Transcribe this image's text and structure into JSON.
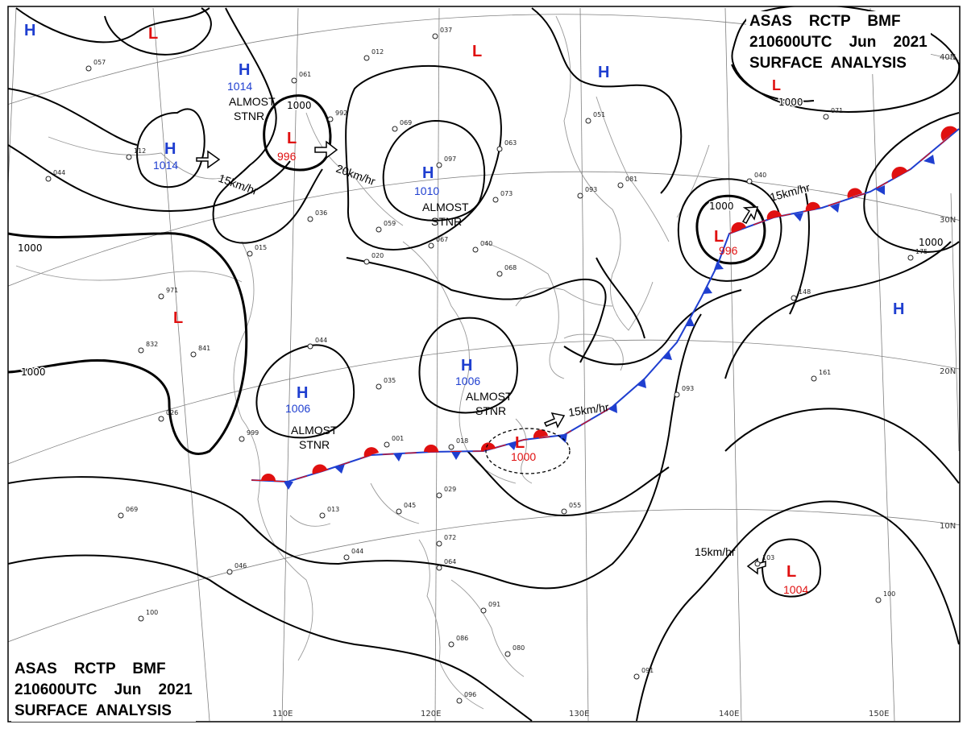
{
  "header": {
    "line1": "ASAS    RCTP    BMF",
    "line2": "210600UTC    Jun    2021",
    "line3": "SURFACE  ANALYSIS"
  },
  "colors": {
    "high": "#1f3fd0",
    "low": "#e01010",
    "isobar": "#000000",
    "grid": "#808080",
    "coast": "#9a9a9a",
    "warm_front": "#e01010",
    "cold_front": "#1f3fd0"
  },
  "lon_labels": [
    "110E",
    "120E",
    "130E",
    "140E",
    "150E"
  ],
  "lat_labels": [
    "40N",
    "30N",
    "20N",
    "10N"
  ],
  "systems": [
    {
      "kind": "H",
      "letter": "H",
      "value": ""
    },
    {
      "kind": "H",
      "letter": "H",
      "value": "1014"
    },
    {
      "kind": "H",
      "letter": "H",
      "value": "1014"
    },
    {
      "kind": "L",
      "letter": "L",
      "value": ""
    },
    {
      "kind": "L",
      "letter": "L",
      "value": "996"
    },
    {
      "kind": "L",
      "letter": "L",
      "value": ""
    },
    {
      "kind": "H",
      "letter": "H",
      "value": "1010"
    },
    {
      "kind": "H",
      "letter": "H",
      "value": ""
    },
    {
      "kind": "L",
      "letter": "L",
      "value": ""
    },
    {
      "kind": "L",
      "letter": "L",
      "value": ""
    },
    {
      "kind": "H",
      "letter": "H",
      "value": "1006"
    },
    {
      "kind": "H",
      "letter": "H",
      "value": "1006"
    },
    {
      "kind": "L",
      "letter": "L",
      "value": "996"
    },
    {
      "kind": "H",
      "letter": "H",
      "value": ""
    },
    {
      "kind": "L",
      "letter": "L",
      "value": "1000"
    },
    {
      "kind": "L",
      "letter": "L",
      "value": "1004"
    }
  ],
  "notes": [
    {
      "line1": "ALMOST",
      "line2": "STNR"
    },
    {
      "line1": "ALMOST",
      "line2": "STNR"
    },
    {
      "line1": "ALMOST",
      "line2": "STNR"
    },
    {
      "line1": "ALMOST",
      "line2": "STNR"
    }
  ],
  "motions": [
    {
      "speed": "15km/hr"
    },
    {
      "speed": "20km/hr"
    },
    {
      "speed": "15km/hr"
    },
    {
      "speed": "15km/hr"
    },
    {
      "speed": "15km/hr"
    }
  ],
  "isobar_labels": [
    "1000",
    "1000",
    "1000",
    "1000",
    "1000",
    "1000"
  ],
  "station_numbers": [
    "037",
    "012",
    "061",
    "992",
    "069",
    "097",
    "063",
    "073",
    "093",
    "036",
    "059",
    "067",
    "040",
    "015",
    "971",
    "020",
    "068",
    "044",
    "035",
    "026",
    "001",
    "018",
    "029",
    "045",
    "013",
    "044",
    "055",
    "999",
    "069",
    "046",
    "100",
    "096",
    "091",
    "086",
    "080",
    "072",
    "064",
    "091",
    "071",
    "103",
    "100",
    "175",
    "148",
    "161",
    "093",
    "040",
    "081",
    "051",
    "112",
    "057",
    "044",
    "832",
    "841"
  ]
}
